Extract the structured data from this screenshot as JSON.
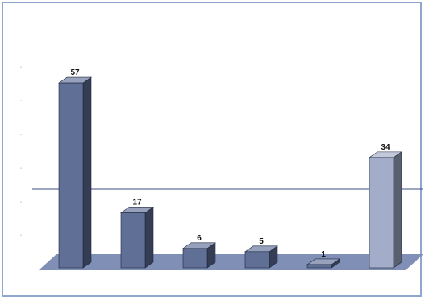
{
  "chart_data": {
    "type": "bar",
    "title": "",
    "categories": [
      "",
      "",
      "",
      "",
      "",
      ""
    ],
    "values": [
      57,
      17,
      6,
      5,
      1,
      34
    ],
    "bar_colors": [
      "#5f6f96",
      "#5f6f96",
      "#5f6f96",
      "#5f6f96",
      "#5f6f96",
      "#a3acc8"
    ],
    "floor_color": "#7f8fb6",
    "ylim": [
      0,
      60
    ],
    "grid": false,
    "legend": "none",
    "xlabel": "",
    "ylabel": ""
  }
}
